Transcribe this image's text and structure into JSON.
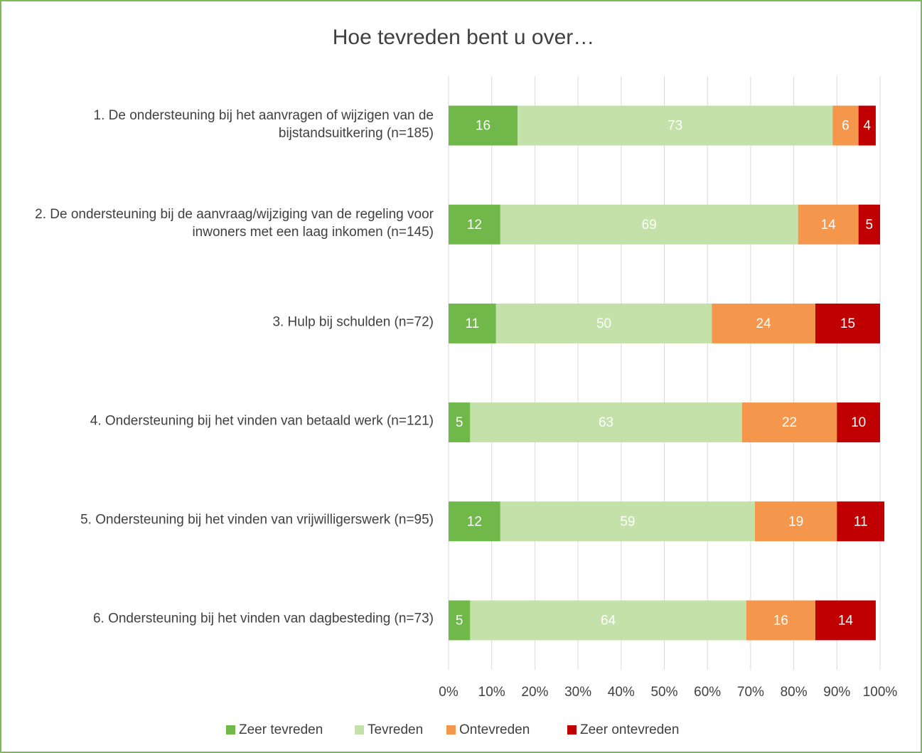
{
  "chart_data": {
    "type": "bar",
    "orientation": "horizontal",
    "stacked": true,
    "title": "Hoe tevreden bent u over…",
    "categories": [
      "1. De ondersteuning bij het aanvragen of wijzigen van de bijstandsuitkering (n=185)",
      "2. De ondersteuning bij de aanvraag/wijziging van de regeling voor inwoners met een laag inkomen (n=145)",
      "3. Hulp bij schulden (n=72)",
      "4. Ondersteuning bij het vinden van betaald werk (n=121)",
      "5. Ondersteuning bij het vinden van vrijwilligerswerk (n=95)",
      "6. Ondersteuning bij het vinden van dagbesteding (n=73)"
    ],
    "series": [
      {
        "name": "Zeer tevreden",
        "color": "#70b84a",
        "values": [
          16,
          12,
          11,
          5,
          12,
          5
        ]
      },
      {
        "name": "Tevreden",
        "color": "#c3e1a8",
        "values": [
          73,
          69,
          50,
          63,
          59,
          64
        ]
      },
      {
        "name": "Ontevreden",
        "color": "#f4974c",
        "values": [
          6,
          14,
          24,
          22,
          19,
          16
        ]
      },
      {
        "name": "Zeer ontevreden",
        "color": "#c00000",
        "values": [
          4,
          5,
          15,
          10,
          11,
          14
        ]
      }
    ],
    "xlim": [
      0,
      100
    ],
    "xticks": [
      {
        "value": 0,
        "label": "0%"
      },
      {
        "value": 10,
        "label": "10%"
      },
      {
        "value": 20,
        "label": "20%"
      },
      {
        "value": 30,
        "label": "30%"
      },
      {
        "value": 40,
        "label": "40%"
      },
      {
        "value": 50,
        "label": "50%"
      },
      {
        "value": 60,
        "label": "60%"
      },
      {
        "value": 70,
        "label": "70%"
      },
      {
        "value": 80,
        "label": "80%"
      },
      {
        "value": 90,
        "label": "90%"
      },
      {
        "value": 100,
        "label": "100%"
      }
    ],
    "grid": true,
    "legend": "bottom"
  }
}
